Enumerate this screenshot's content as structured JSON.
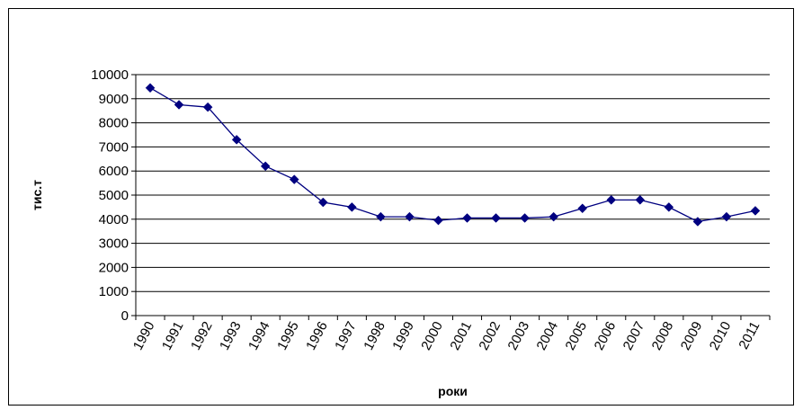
{
  "chart_data": {
    "type": "line",
    "title": "",
    "xlabel": "роки",
    "ylabel": "тис.т",
    "ylim": [
      0,
      10000
    ],
    "yticks": [
      0,
      1000,
      2000,
      3000,
      4000,
      5000,
      6000,
      7000,
      8000,
      9000,
      10000
    ],
    "grid": true,
    "legend": "none",
    "categories": [
      "1990",
      "1991",
      "1992",
      "1993",
      "1994",
      "1995",
      "1996",
      "1997",
      "1998",
      "1999",
      "2000",
      "2001",
      "2002",
      "2003",
      "2004",
      "2005",
      "2006",
      "2007",
      "2008",
      "2009",
      "2010",
      "2011"
    ],
    "series": [
      {
        "color": "#000080",
        "marker": "diamond",
        "values": [
          9450,
          8750,
          8650,
          7300,
          6200,
          5650,
          4700,
          4500,
          4100,
          4100,
          3950,
          4050,
          4050,
          4050,
          4100,
          4450,
          4800,
          4800,
          4500,
          3900,
          4100,
          4350
        ]
      }
    ]
  }
}
